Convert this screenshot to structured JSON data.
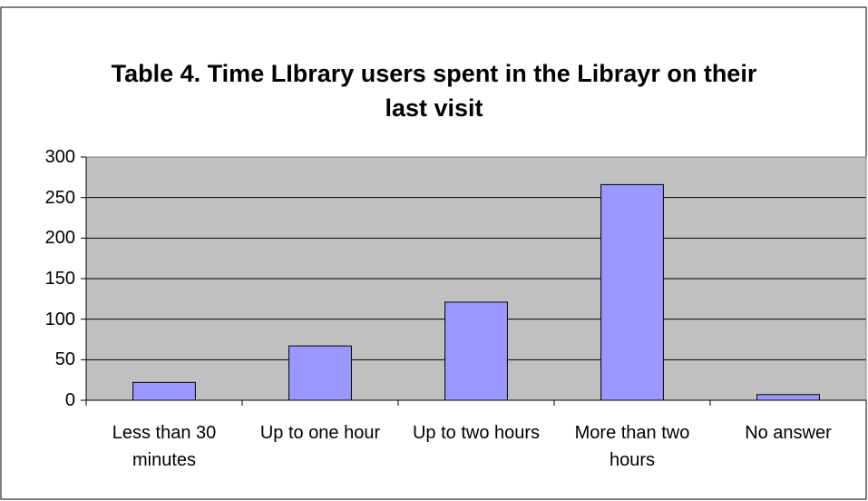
{
  "chart_data": {
    "type": "bar",
    "title": "Table 4. Time LIbrary users spent in the Librayr on their last visit",
    "categories": [
      "Less than 30 minutes",
      "Up to one hour",
      "Up to two hours",
      "More than two hours",
      "No answer"
    ],
    "values": [
      22,
      67,
      121,
      266,
      7
    ],
    "color": "#9999ff",
    "ylim": [
      0,
      300
    ],
    "yticks": [
      0,
      50,
      100,
      150,
      200,
      250,
      300
    ],
    "grid": true
  }
}
